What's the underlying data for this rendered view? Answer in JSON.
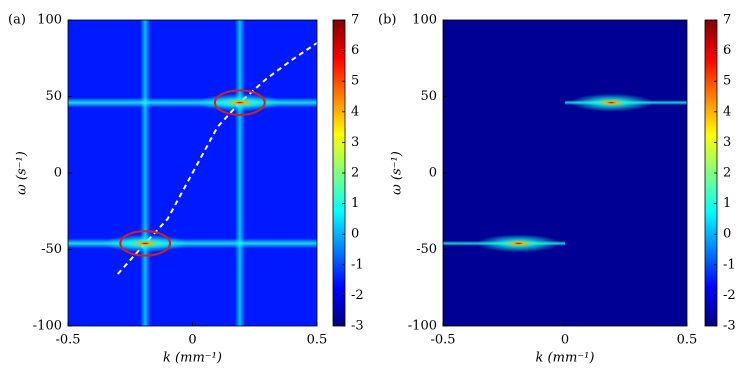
{
  "chart_data": [
    {
      "type": "heatmap",
      "panel_label": "(a)",
      "xlabel": "k (mm⁻¹)",
      "ylabel": "ω (s⁻¹)",
      "xlim": [
        -0.5,
        0.5
      ],
      "xticks": [
        -0.5,
        0,
        0.5
      ],
      "ylim": [
        -100,
        100
      ],
      "yticks": [
        -100,
        -50,
        0,
        50,
        100
      ],
      "colorbar": {
        "lim": [
          -3,
          7
        ],
        "ticks": [
          -3,
          -2,
          -1,
          0,
          1,
          2,
          3,
          4,
          5,
          6,
          7
        ]
      },
      "background": -1.5,
      "vlines": {
        "x": [
          -0.19,
          0.19
        ],
        "values": [
          0.5,
          0.5
        ]
      },
      "hlines": {
        "y": [
          -46,
          46
        ],
        "values": [
          1,
          1
        ]
      },
      "peaks": {
        "x": [
          -0.19,
          0.19
        ],
        "y": [
          -46,
          46
        ],
        "values": [
          7,
          7
        ]
      },
      "curve": {
        "x": [
          -0.3,
          -0.19,
          -0.1,
          0,
          0.1,
          0.19,
          0.3,
          0.4,
          0.5
        ],
        "y": [
          -66,
          -46,
          -30,
          0,
          30,
          46,
          62,
          74,
          85
        ]
      },
      "ellipses": {
        "x": [
          -0.19,
          0.19
        ],
        "y": [
          -46,
          46
        ],
        "rx": [
          0.1,
          0.1
        ],
        "ry": [
          8,
          8
        ],
        "color": "#d42020"
      }
    },
    {
      "type": "heatmap",
      "panel_label": "(b)",
      "xlabel": "k (mm⁻¹)",
      "ylabel": "ω (s⁻¹)",
      "xlim": [
        -0.5,
        0.5
      ],
      "xticks": [
        -0.5,
        0,
        0.5
      ],
      "ylim": [
        -100,
        100
      ],
      "yticks": [
        -100,
        -50,
        0,
        50,
        100
      ],
      "colorbar": {
        "lim": [
          -3,
          7
        ],
        "ticks": [
          -3,
          -2,
          -1,
          0,
          1,
          2,
          3,
          4,
          5,
          6,
          7
        ]
      },
      "background": -2.8,
      "streaks": {
        "x0": [
          -0.5,
          0
        ],
        "x1": [
          0,
          0.5
        ],
        "y": [
          -46,
          46
        ],
        "values": [
          1,
          1
        ]
      },
      "peaks": {
        "x": [
          -0.19,
          0.19
        ],
        "y": [
          -46,
          46
        ],
        "values": [
          7,
          7
        ]
      }
    }
  ]
}
